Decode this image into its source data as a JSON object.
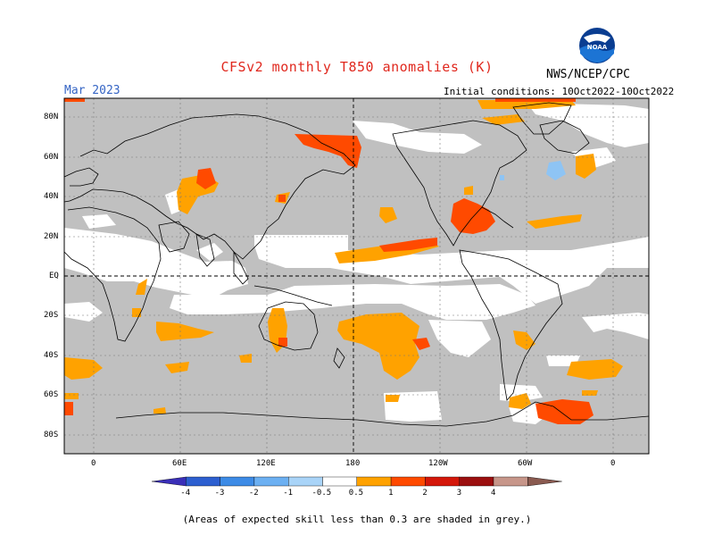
{
  "title": "CFSv2 monthly T850 anomalies (K)",
  "agency": "NWS/NCEP/CPC",
  "logo_text": "NOAA",
  "month": "Mar 2023",
  "init_conditions": "Initial conditions: 10Oct2022-10Oct2022",
  "lat_labels": [
    "80N",
    "60N",
    "40N",
    "20N",
    "EQ",
    "20S",
    "40S",
    "60S",
    "80S"
  ],
  "lon_labels": [
    "0",
    "60E",
    "120E",
    "180",
    "120W",
    "60W",
    "0"
  ],
  "colorbar": {
    "ticks": [
      "-4",
      "-3",
      "-2",
      "-1",
      "-0.5",
      "0.5",
      "1",
      "2",
      "3",
      "4"
    ],
    "colors": [
      "#3a2fb8",
      "#2d5fd0",
      "#3d8be6",
      "#6cb0f2",
      "#a9d4f8",
      "#ffffff",
      "#ffa200",
      "#ff4a00",
      "#d4170a",
      "#9b0f0f",
      "#c7968a",
      "#8a5a50"
    ]
  },
  "note": "(Areas of expected skill less than 0.3 are shaded in grey.)",
  "colors": {
    "title": "#e0281e",
    "month": "#3464c4",
    "skill_grey": "#c0c0c0",
    "warm_05_1": "#ffa200",
    "warm_1_2": "#ff4a00",
    "cool_05_1": "#8ec4f4"
  }
}
